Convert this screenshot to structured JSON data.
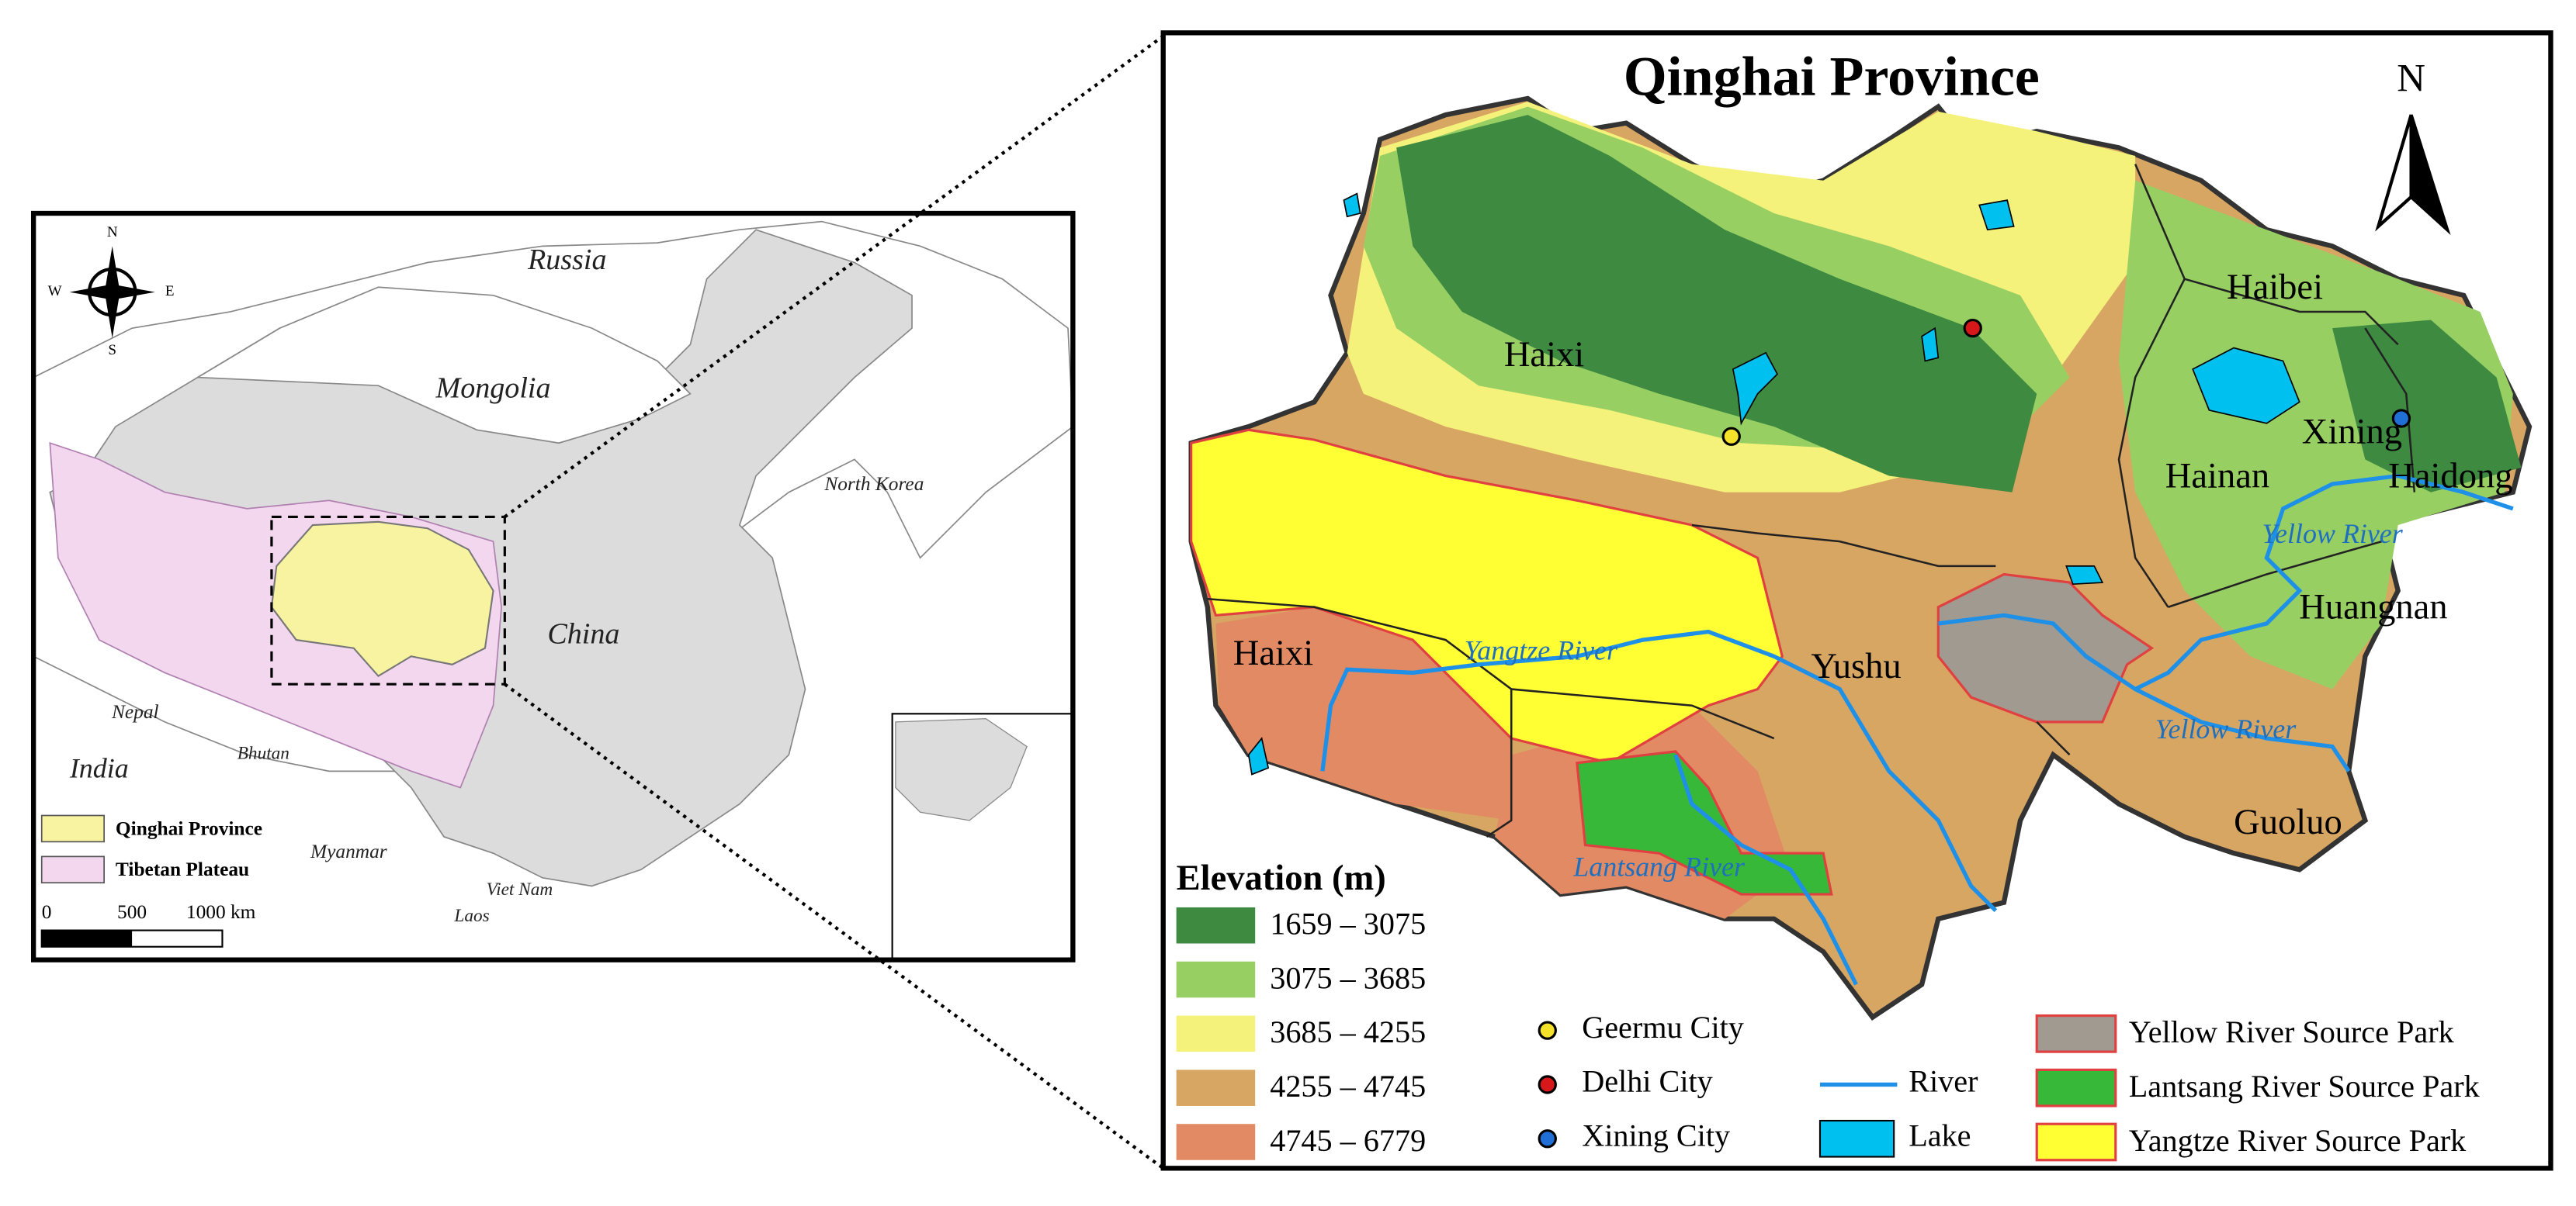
{
  "overview_map": {
    "countries": [
      "Russia",
      "Mongolia",
      "North Korea",
      "China",
      "India",
      "Nepal",
      "Bhutan",
      "Myanmar",
      "Viet Nam",
      "Laos"
    ],
    "compass": {
      "n": "N",
      "s": "S",
      "w": "W",
      "e": "E"
    },
    "legend": [
      {
        "label": "Qinghai Province",
        "color": "#f7f3a0"
      },
      {
        "label": "Tibetan Plateau",
        "color": "#f2d7ef"
      }
    ],
    "scale_bar": {
      "labels": [
        "0",
        "500",
        "1000 km"
      ]
    }
  },
  "detail_map": {
    "title": "Qinghai Province",
    "north": "N",
    "regions": [
      "Haixi",
      "Haibei",
      "Xining",
      "Haidong",
      "Hainan",
      "Huangnan",
      "Yushu",
      "Guoluo",
      "Haixi"
    ],
    "rivers": [
      "Yangtze River",
      "Yellow River",
      "Yellow River",
      "Lantsang River"
    ],
    "elevation_legend": {
      "title": "Elevation (m)",
      "classes": [
        {
          "label": "1659 – 3075",
          "color": "#3d8a40"
        },
        {
          "label": "3075 – 3685",
          "color": "#97cf63"
        },
        {
          "label": "3685 – 4255",
          "color": "#f4f27a"
        },
        {
          "label": "4255 – 4745",
          "color": "#d8a663"
        },
        {
          "label": "4745 – 6779",
          "color": "#e28a63"
        }
      ]
    },
    "point_legend": [
      {
        "label": "Geermu City",
        "color": "#f4e12a"
      },
      {
        "label": "Delhi City",
        "color": "#d7181b"
      },
      {
        "label": "Xining City",
        "color": "#1f6fd6"
      }
    ],
    "feature_legend": [
      {
        "label": "River",
        "color": "#1e90e8"
      },
      {
        "label": "Lake",
        "color": "#00c0f0"
      }
    ],
    "park_legend": [
      {
        "label": "Yellow River Source Park",
        "color": "#a09a90"
      },
      {
        "label": "Lantsang  River Source Park",
        "color": "#38b838"
      },
      {
        "label": "Yangtze River Source Park",
        "color": "#ffff33"
      }
    ]
  }
}
